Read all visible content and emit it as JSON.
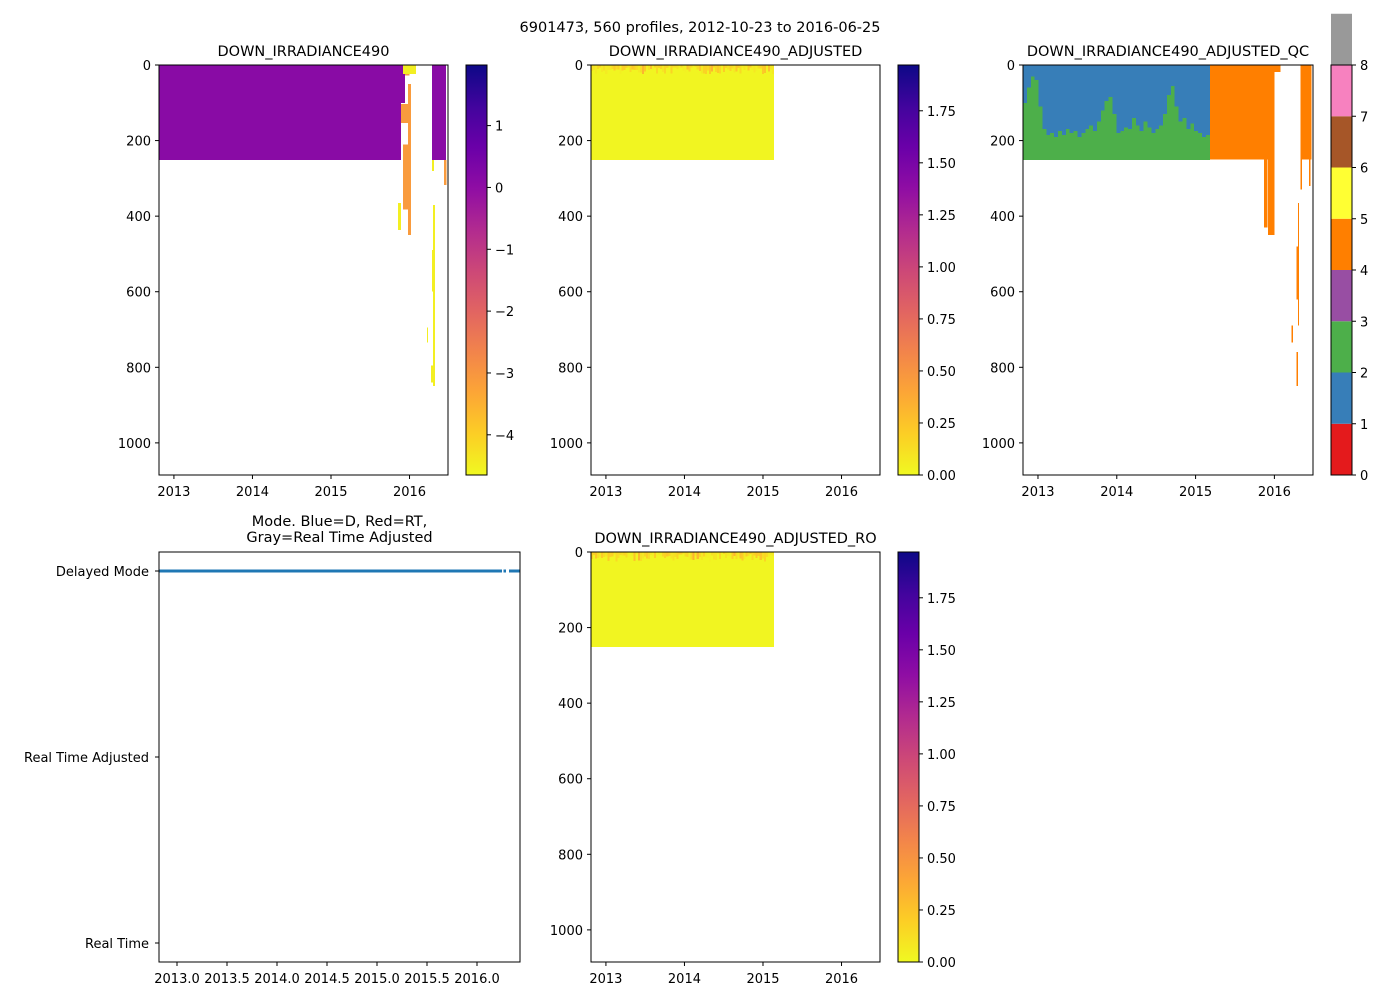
{
  "suptitle": "6901473, 560 profiles, 2012-10-23 to 2016-06-25",
  "colors": {
    "axis": "#000000",
    "mode_line": "#1f77b4"
  },
  "chart_data": [
    {
      "id": "p1",
      "type": "heatmap",
      "title": "DOWN_IRRADIANCE490",
      "xlim": [
        2012.81,
        2016.49
      ],
      "ylim": [
        1085,
        0
      ],
      "x_ticks": [
        2013,
        2014,
        2015,
        2016
      ],
      "x_tick_labels": [
        "2013",
        "2014",
        "2015",
        "2016"
      ],
      "y_ticks": [
        0,
        200,
        400,
        600,
        800,
        1000
      ],
      "y_tick_labels": [
        "0",
        "200",
        "400",
        "600",
        "800",
        "1000"
      ],
      "colorbar": {
        "cmap": "plasma_r",
        "range": [
          -4.65,
          1.98
        ],
        "ticks": [
          1,
          0,
          -1,
          -2,
          -3,
          -4
        ],
        "tick_labels": [
          "1",
          "0",
          "−1",
          "−2",
          "−3",
          "−4"
        ]
      },
      "segments": [
        [
          2012.81,
          2015.89,
          0,
          252,
          0.1
        ],
        [
          2015.89,
          2015.94,
          0,
          100,
          0.1
        ],
        [
          2015.917,
          2016.083,
          0,
          24,
          -4.5
        ],
        [
          2015.94,
          2016.0,
          24,
          28,
          -3.1
        ],
        [
          2015.98,
          2016.02,
          50,
          450,
          -3.1
        ],
        [
          2015.89,
          2016.02,
          103,
          153,
          -3.1
        ],
        [
          2015.917,
          2016.02,
          210,
          383,
          -3.1
        ],
        [
          2015.854,
          2015.892,
          365,
          437,
          -4.5
        ],
        [
          2016.287,
          2016.465,
          0,
          252,
          0.1
        ],
        [
          2016.44,
          2016.47,
          252,
          318,
          -3.1
        ],
        [
          2016.287,
          2016.312,
          252,
          280,
          -4.5
        ],
        [
          2016.3,
          2016.322,
          370,
          850,
          -4.5
        ],
        [
          2016.287,
          2016.3,
          490,
          600,
          -4.5
        ],
        [
          2016.223,
          2016.236,
          695,
          735,
          -4.5
        ],
        [
          2016.274,
          2016.3,
          795,
          840,
          -4.5
        ]
      ]
    },
    {
      "id": "p2",
      "type": "heatmap",
      "title": "DOWN_IRRADIANCE490_ADJUSTED",
      "xlim": [
        2012.81,
        2016.49
      ],
      "ylim": [
        1085,
        0
      ],
      "x_ticks": [
        2013,
        2014,
        2015,
        2016
      ],
      "x_tick_labels": [
        "2013",
        "2014",
        "2015",
        "2016"
      ],
      "y_ticks": [
        0,
        200,
        400,
        600,
        800,
        1000
      ],
      "y_tick_labels": [
        "0",
        "200",
        "400",
        "600",
        "800",
        "1000"
      ],
      "colorbar": {
        "cmap": "plasma_r",
        "range": [
          0,
          1.97
        ],
        "ticks": [
          0,
          0.25,
          0.5,
          0.75,
          1,
          1.25,
          1.5,
          1.75
        ],
        "tick_labels": [
          "0.00",
          "0.25",
          "0.50",
          "0.75",
          "1.00",
          "1.25",
          "1.50",
          "1.75"
        ]
      },
      "segments": [
        [
          2012.81,
          2015.14,
          0,
          252,
          0.02
        ]
      ],
      "surface_layer": {
        "x": [
          2012.81,
          2015.14
        ],
        "depth": [
          0,
          25
        ],
        "value_range": [
          0.05,
          0.35
        ]
      }
    },
    {
      "id": "p3",
      "type": "heatmap",
      "title": "DOWN_IRRADIANCE490_ADJUSTED_QC",
      "xlim": [
        2012.81,
        2016.49
      ],
      "ylim": [
        1085,
        0
      ],
      "x_ticks": [
        2013,
        2014,
        2015,
        2016
      ],
      "x_tick_labels": [
        "2013",
        "2014",
        "2015",
        "2016"
      ],
      "y_ticks": [
        0,
        200,
        400,
        600,
        800,
        1000
      ],
      "y_tick_labels": [
        "0",
        "200",
        "400",
        "600",
        "800",
        "1000"
      ],
      "colorbar": {
        "cmap": "Set1 (discrete)",
        "range": [
          0,
          8
        ],
        "ticks": [
          0,
          1,
          2,
          3,
          4,
          5,
          6,
          7,
          8
        ],
        "tick_labels": [
          "0",
          "1",
          "2",
          "3",
          "4",
          "5",
          "6",
          "7",
          "8"
        ],
        "class_colors": [
          "#e41a1c",
          "#377eb8",
          "#4daf4a",
          "#984ea3",
          "#ff7f00",
          "#ffff33",
          "#a65628",
          "#f781bf",
          "#999999"
        ]
      },
      "flag1_over_flag2": {
        "x": [
          2012.81,
          2015.18
        ],
        "max_depth": 252,
        "boundary_depths": [
          100,
          60,
          30,
          40,
          110,
          170,
          185,
          180,
          190,
          175,
          185,
          170,
          180,
          175,
          190,
          180,
          170,
          160,
          175,
          150,
          120,
          95,
          85,
          130,
          180,
          175,
          165,
          170,
          140,
          160,
          175,
          150,
          165,
          180,
          170,
          160,
          130,
          80,
          55,
          110,
          150,
          140,
          170,
          155,
          175,
          180,
          190,
          185
        ]
      },
      "segments": [
        [
          2015.18,
          2015.9,
          0,
          250,
          4
        ],
        [
          2015.9,
          2016.08,
          0,
          18,
          4
        ],
        [
          2015.9,
          2016.0,
          18,
          250,
          4
        ],
        [
          2015.87,
          2015.91,
          250,
          430,
          4
        ],
        [
          2015.92,
          2016.0,
          250,
          450,
          4
        ],
        [
          2016.33,
          2016.47,
          0,
          250,
          4
        ],
        [
          2016.33,
          2016.35,
          250,
          330,
          4
        ],
        [
          2016.44,
          2016.46,
          250,
          320,
          4
        ],
        [
          2016.28,
          2016.3,
          480,
          620,
          4
        ],
        [
          2016.28,
          2016.3,
          760,
          850,
          4
        ],
        [
          2016.22,
          2016.235,
          690,
          735,
          4
        ],
        [
          2016.3,
          2016.312,
          365,
          690,
          4
        ]
      ]
    },
    {
      "id": "p4",
      "type": "line",
      "title": "Mode. Blue=D, Red=RT,",
      "title2": "Gray=Real Time Adjusted",
      "xlim": [
        2012.82,
        2016.43
      ],
      "x_ticks": [
        2013.0,
        2013.5,
        2014.0,
        2014.5,
        2015.0,
        2015.5,
        2016.0
      ],
      "x_tick_labels": [
        "2013.0",
        "2013.5",
        "2014.0",
        "2014.5",
        "2015.0",
        "2015.5",
        "2016.0"
      ],
      "y_categories": [
        "Delayed Mode",
        "Real Time Adjusted",
        "Real Time"
      ],
      "series": [
        {
          "name": "Delayed Mode",
          "category": "Delayed Mode",
          "intervals": [
            [
              2012.82,
              2016.25
            ],
            [
              2016.265,
              2016.29
            ],
            [
              2016.32,
              2016.43
            ]
          ]
        }
      ]
    },
    {
      "id": "p5",
      "type": "heatmap",
      "title": "DOWN_IRRADIANCE490_ADJUSTED_RO",
      "xlim": [
        2012.81,
        2016.49
      ],
      "ylim": [
        1085,
        0
      ],
      "x_ticks": [
        2013,
        2014,
        2015,
        2016
      ],
      "x_tick_labels": [
        "2013",
        "2014",
        "2015",
        "2016"
      ],
      "y_ticks": [
        0,
        200,
        400,
        600,
        800,
        1000
      ],
      "y_tick_labels": [
        "0",
        "200",
        "400",
        "600",
        "800",
        "1000"
      ],
      "colorbar": {
        "cmap": "plasma_r",
        "range": [
          0,
          1.97
        ],
        "ticks": [
          0,
          0.25,
          0.5,
          0.75,
          1,
          1.25,
          1.5,
          1.75
        ],
        "tick_labels": [
          "0.00",
          "0.25",
          "0.50",
          "0.75",
          "1.00",
          "1.25",
          "1.50",
          "1.75"
        ]
      },
      "segments": [
        [
          2012.81,
          2015.14,
          0,
          252,
          0.02
        ]
      ],
      "surface_layer": {
        "x": [
          2012.81,
          2015.14
        ],
        "depth": [
          0,
          25
        ],
        "value_range": [
          0.05,
          0.35
        ]
      }
    }
  ]
}
